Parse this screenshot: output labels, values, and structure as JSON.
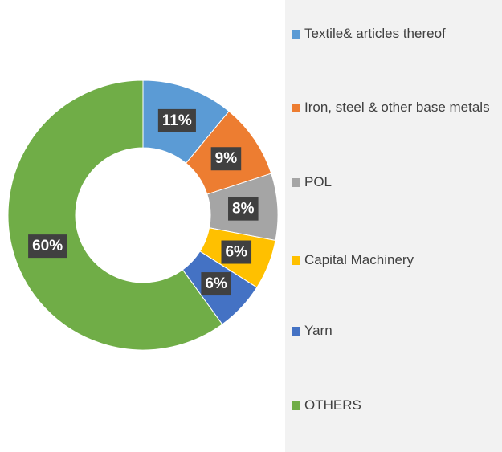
{
  "chart_data": {
    "type": "pie",
    "categories": [
      "Textile& articles thereof",
      "Iron, steel & other base metals",
      "POL",
      "Capital Machinery",
      "Yarn",
      "OTHERS"
    ],
    "values": [
      11,
      9,
      8,
      6,
      6,
      60
    ],
    "value_labels": [
      "11%",
      "9%",
      "8%",
      "6%",
      "6%",
      "60%"
    ],
    "colors": [
      "#5b9bd5",
      "#ed7d31",
      "#a5a5a5",
      "#ffc000",
      "#4472c4",
      "#70ad47"
    ],
    "legend": "right"
  }
}
